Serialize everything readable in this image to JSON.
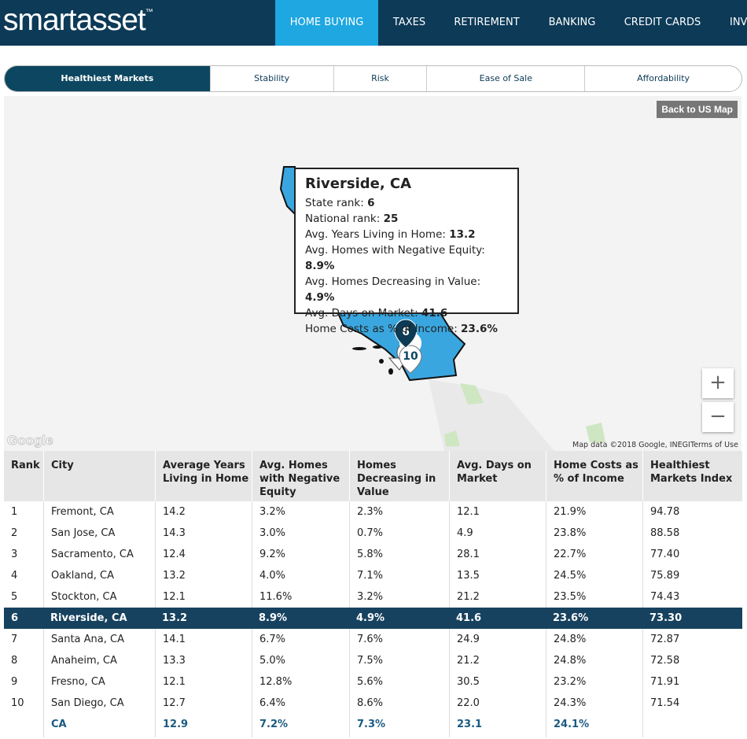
{
  "header": {
    "logo": "smartasset",
    "trademark": "™",
    "nav": [
      "HOME BUYING",
      "TAXES",
      "RETIREMENT",
      "BANKING",
      "CREDIT CARDS",
      "INV"
    ]
  },
  "tabs": [
    "Healthiest Markets",
    "Stability",
    "Risk",
    "Ease of Sale",
    "Affordability"
  ],
  "map": {
    "back_button": "Back to US Map",
    "tooltip": {
      "title": "Riverside, CA",
      "rows": [
        [
          "State rank: ",
          "6"
        ],
        [
          "National rank: ",
          "25"
        ],
        [
          "Avg. Years Living in Home: ",
          "13.2"
        ],
        [
          "Avg. Homes with Negative Equity: ",
          "8.9%"
        ],
        [
          "Avg. Homes Decreasing in Value: ",
          "4.9%"
        ],
        [
          "Avg. Days on Market: ",
          "41.6"
        ],
        [
          "Home Costs as % of Income: ",
          "23.6%"
        ]
      ]
    },
    "markers": [
      "6",
      "10"
    ],
    "zoom_in": "+",
    "zoom_out": "−",
    "google": "Google",
    "attribution": "Map data ©2018 Google, INEGI",
    "terms": "Terms of Use"
  },
  "table": {
    "headers": [
      "Rank",
      "City",
      "Average Years Living in Home",
      "Avg. Homes with Negative Equity",
      "Homes Decreasing in Value",
      "Avg. Days on Market",
      "Home Costs as % of Income",
      "Healthiest Markets Index"
    ],
    "rows": [
      [
        "1",
        "Fremont, CA",
        "14.2",
        "3.2%",
        "2.3%",
        "12.1",
        "21.9%",
        "94.78"
      ],
      [
        "2",
        "San Jose, CA",
        "14.3",
        "3.0%",
        "0.7%",
        "4.9",
        "23.8%",
        "88.58"
      ],
      [
        "3",
        "Sacramento, CA",
        "12.4",
        "9.2%",
        "5.8%",
        "28.1",
        "22.7%",
        "77.40"
      ],
      [
        "4",
        "Oakland, CA",
        "13.2",
        "4.0%",
        "7.1%",
        "13.5",
        "24.5%",
        "75.89"
      ],
      [
        "5",
        "Stockton, CA",
        "12.1",
        "11.6%",
        "3.2%",
        "21.2",
        "23.5%",
        "74.43"
      ],
      [
        "6",
        "Riverside, CA",
        "13.2",
        "8.9%",
        "4.9%",
        "41.6",
        "23.6%",
        "73.30"
      ],
      [
        "7",
        "Santa Ana, CA",
        "14.1",
        "6.7%",
        "7.6%",
        "24.9",
        "24.8%",
        "72.87"
      ],
      [
        "8",
        "Anaheim, CA",
        "13.3",
        "5.0%",
        "7.5%",
        "21.2",
        "24.8%",
        "72.58"
      ],
      [
        "9",
        "Fresno, CA",
        "12.1",
        "12.8%",
        "5.6%",
        "30.5",
        "23.2%",
        "71.91"
      ],
      [
        "10",
        "San Diego, CA",
        "12.7",
        "6.4%",
        "8.6%",
        "22.0",
        "24.3%",
        "71.54"
      ]
    ],
    "footer": [
      "CA",
      "12.9",
      "7.2%",
      "7.3%",
      "23.1",
      "24.1%"
    ]
  }
}
